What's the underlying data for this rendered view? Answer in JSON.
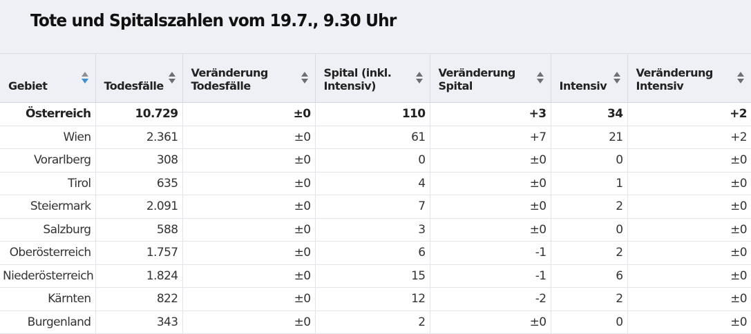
{
  "title": "Tote und Spitalszahlen vom 19.7., 9.30 Uhr",
  "columns": [
    {
      "label": "Gebiet",
      "sort": "desc-active"
    },
    {
      "label": "Todesfälle",
      "sort": "none"
    },
    {
      "label": "Veränderung Todesfälle",
      "sort": "none"
    },
    {
      "label": "Spital (inkl. Intensiv)",
      "sort": "none"
    },
    {
      "label": "Veränderung Spital",
      "sort": "none"
    },
    {
      "label": "Intensiv",
      "sort": "none"
    },
    {
      "label": "Veränderung Intensiv",
      "sort": "none"
    }
  ],
  "rows": [
    [
      "Österreich",
      "10.729",
      "±0",
      "110",
      "+3",
      "34",
      "+2"
    ],
    [
      "Wien",
      "2.361",
      "±0",
      "61",
      "+7",
      "21",
      "+2"
    ],
    [
      "Vorarlberg",
      "308",
      "±0",
      "0",
      "±0",
      "0",
      "±0"
    ],
    [
      "Tirol",
      "635",
      "±0",
      "4",
      "±0",
      "1",
      "±0"
    ],
    [
      "Steiermark",
      "2.091",
      "±0",
      "7",
      "±0",
      "2",
      "±0"
    ],
    [
      "Salzburg",
      "588",
      "±0",
      "3",
      "±0",
      "0",
      "±0"
    ],
    [
      "Oberösterreich",
      "1.757",
      "±0",
      "6",
      "-1",
      "2",
      "±0"
    ],
    [
      "Niederösterreich",
      "1.824",
      "±0",
      "15",
      "-1",
      "6",
      "±0"
    ],
    [
      "Kärnten",
      "822",
      "±0",
      "12",
      "-2",
      "2",
      "±0"
    ],
    [
      "Burgenland",
      "343",
      "±0",
      "2",
      "±0",
      "0",
      "±0"
    ]
  ],
  "colors": {
    "header_bg": "#eef0f5",
    "sort_active": "#3d8fd6",
    "sort_inactive": "#6b6f78"
  }
}
